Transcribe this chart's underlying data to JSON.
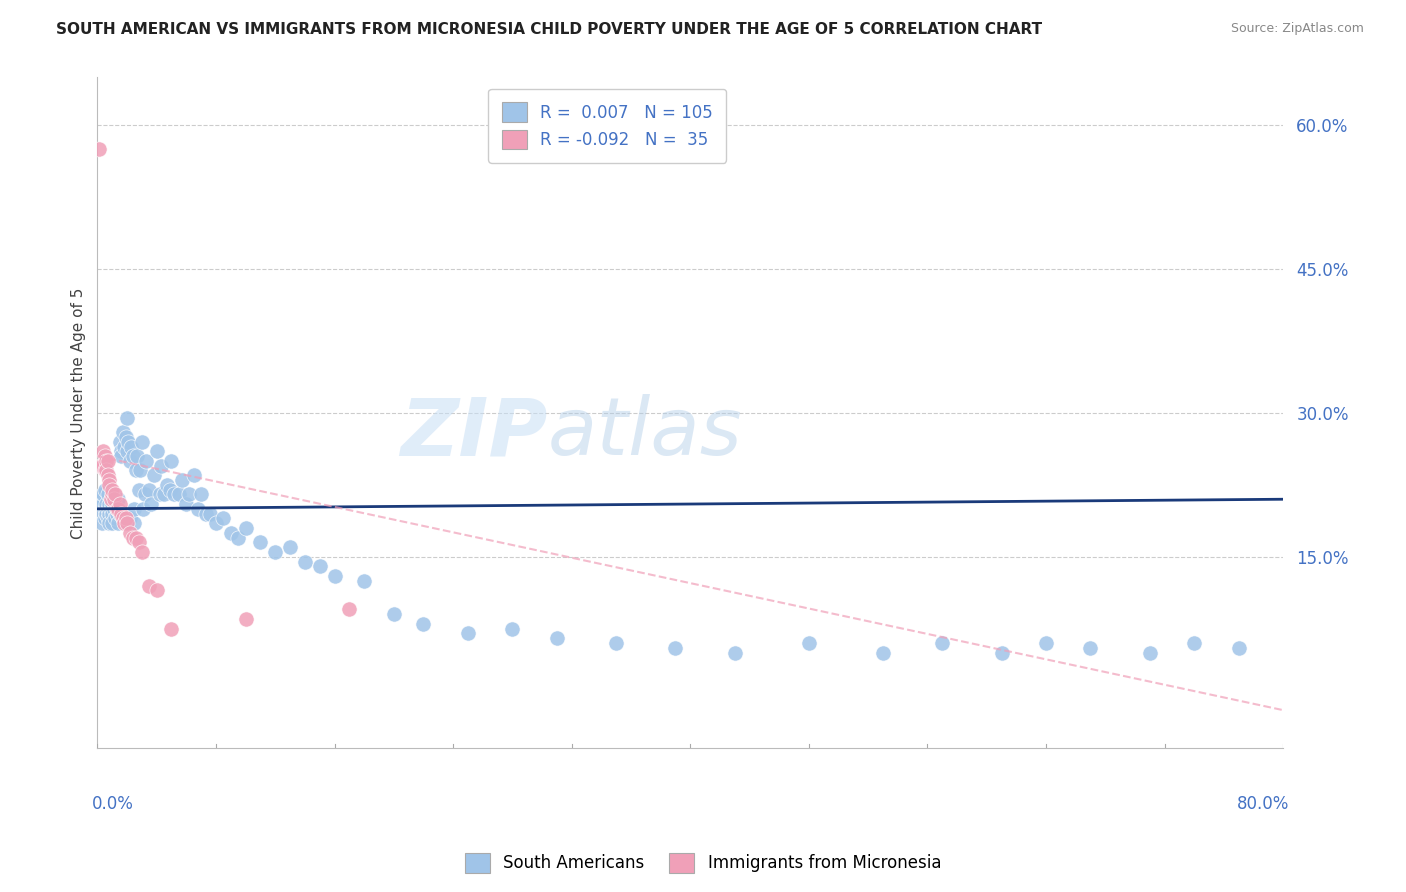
{
  "title": "SOUTH AMERICAN VS IMMIGRANTS FROM MICRONESIA CHILD POVERTY UNDER THE AGE OF 5 CORRELATION CHART",
  "source": "Source: ZipAtlas.com",
  "ylabel": "Child Poverty Under the Age of 5",
  "xlim": [
    0.0,
    0.8
  ],
  "ylim": [
    -0.05,
    0.65
  ],
  "blue_color": "#a0c4e8",
  "pink_color": "#f0a0b8",
  "blue_line_color": "#1a3a7a",
  "pink_line_color": "#d06070",
  "watermark_zip": "ZIP",
  "watermark_atlas": "atlas",
  "legend_r1": "R =  0.007   N = 105",
  "legend_r2": "R = -0.092   N =  35",
  "sa_x": [
    0.002,
    0.003,
    0.003,
    0.004,
    0.004,
    0.005,
    0.005,
    0.005,
    0.006,
    0.006,
    0.007,
    0.007,
    0.007,
    0.008,
    0.008,
    0.008,
    0.009,
    0.009,
    0.01,
    0.01,
    0.01,
    0.011,
    0.011,
    0.012,
    0.012,
    0.013,
    0.013,
    0.014,
    0.014,
    0.015,
    0.015,
    0.016,
    0.016,
    0.017,
    0.017,
    0.018,
    0.018,
    0.019,
    0.019,
    0.02,
    0.02,
    0.021,
    0.022,
    0.022,
    0.023,
    0.024,
    0.025,
    0.025,
    0.026,
    0.027,
    0.028,
    0.029,
    0.03,
    0.031,
    0.032,
    0.033,
    0.035,
    0.036,
    0.038,
    0.04,
    0.042,
    0.043,
    0.045,
    0.047,
    0.049,
    0.05,
    0.052,
    0.055,
    0.057,
    0.06,
    0.062,
    0.065,
    0.068,
    0.07,
    0.073,
    0.076,
    0.08,
    0.085,
    0.09,
    0.095,
    0.1,
    0.11,
    0.12,
    0.13,
    0.14,
    0.15,
    0.16,
    0.18,
    0.2,
    0.22,
    0.25,
    0.28,
    0.31,
    0.35,
    0.39,
    0.43,
    0.48,
    0.53,
    0.57,
    0.61,
    0.64,
    0.67,
    0.71,
    0.74,
    0.77
  ],
  "sa_y": [
    0.195,
    0.21,
    0.185,
    0.205,
    0.215,
    0.19,
    0.2,
    0.22,
    0.195,
    0.205,
    0.19,
    0.2,
    0.215,
    0.195,
    0.205,
    0.185,
    0.2,
    0.21,
    0.195,
    0.205,
    0.185,
    0.2,
    0.215,
    0.19,
    0.205,
    0.195,
    0.2,
    0.185,
    0.21,
    0.195,
    0.27,
    0.26,
    0.255,
    0.19,
    0.28,
    0.195,
    0.265,
    0.275,
    0.185,
    0.295,
    0.26,
    0.27,
    0.25,
    0.19,
    0.265,
    0.255,
    0.185,
    0.2,
    0.24,
    0.255,
    0.22,
    0.24,
    0.27,
    0.2,
    0.215,
    0.25,
    0.22,
    0.205,
    0.235,
    0.26,
    0.215,
    0.245,
    0.215,
    0.225,
    0.22,
    0.25,
    0.215,
    0.215,
    0.23,
    0.205,
    0.215,
    0.235,
    0.2,
    0.215,
    0.195,
    0.195,
    0.185,
    0.19,
    0.175,
    0.17,
    0.18,
    0.165,
    0.155,
    0.16,
    0.145,
    0.14,
    0.13,
    0.125,
    0.09,
    0.08,
    0.07,
    0.075,
    0.065,
    0.06,
    0.055,
    0.05,
    0.06,
    0.05,
    0.06,
    0.05,
    0.06,
    0.055,
    0.05,
    0.06,
    0.055
  ],
  "mic_x": [
    0.001,
    0.002,
    0.003,
    0.004,
    0.005,
    0.005,
    0.006,
    0.006,
    0.007,
    0.007,
    0.008,
    0.008,
    0.009,
    0.01,
    0.01,
    0.011,
    0.012,
    0.013,
    0.014,
    0.015,
    0.016,
    0.017,
    0.018,
    0.019,
    0.02,
    0.022,
    0.024,
    0.026,
    0.028,
    0.03,
    0.035,
    0.04,
    0.05,
    0.1,
    0.17
  ],
  "mic_y": [
    0.575,
    0.245,
    0.245,
    0.26,
    0.255,
    0.24,
    0.25,
    0.24,
    0.25,
    0.235,
    0.23,
    0.225,
    0.21,
    0.215,
    0.22,
    0.21,
    0.215,
    0.2,
    0.2,
    0.205,
    0.195,
    0.19,
    0.185,
    0.19,
    0.185,
    0.175,
    0.17,
    0.17,
    0.165,
    0.155,
    0.12,
    0.115,
    0.075,
    0.085,
    0.095
  ],
  "blue_trendline_y0": 0.2,
  "blue_trendline_y1": 0.21,
  "pink_trendline_x0": 0.0,
  "pink_trendline_y0": 0.255,
  "pink_trendline_x1": 0.8,
  "pink_trendline_y1": -0.01
}
